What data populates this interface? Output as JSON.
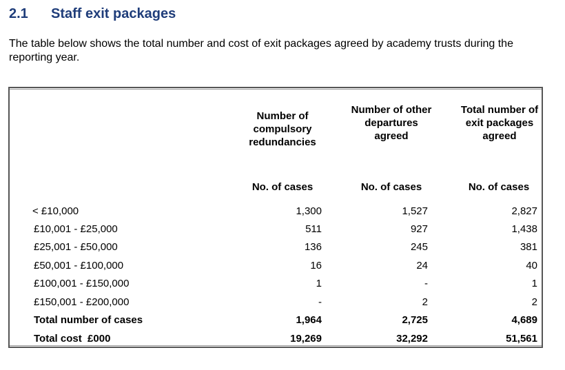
{
  "section": {
    "number": "2.1",
    "title": "Staff exit packages"
  },
  "intro": "The table below shows the total number and cost of exit packages agreed by academy trusts during the reporting year.",
  "table": {
    "columns": [
      {
        "heading": "Number of compulsory redundancies",
        "unit": "No. of cases"
      },
      {
        "heading": "Number of other departures agreed",
        "unit": "No. of cases"
      },
      {
        "heading": "Total number of exit packages agreed",
        "unit": "No. of cases"
      }
    ],
    "rows": [
      {
        "band": "< £10,000",
        "values": [
          "1,300",
          "1,527",
          "2,827"
        ]
      },
      {
        "band": "£10,001 - £25,000",
        "values": [
          "511",
          "927",
          "1,438"
        ]
      },
      {
        "band": "£25,001 - £50,000",
        "values": [
          "136",
          "245",
          "381"
        ]
      },
      {
        "band": "£50,001 - £100,000",
        "values": [
          "16",
          "24",
          "40"
        ]
      },
      {
        "band": "£100,001 - £150,000",
        "values": [
          "1",
          "-",
          "1"
        ]
      },
      {
        "band": "£150,001 - £200,000",
        "values": [
          "-",
          "2",
          "2"
        ]
      }
    ],
    "totals": [
      {
        "label": "Total number of cases",
        "values": [
          "1,964",
          "2,725",
          "4,689"
        ]
      },
      {
        "label": "Total cost  £000",
        "values": [
          "19,269",
          "32,292",
          "51,561"
        ]
      }
    ]
  }
}
